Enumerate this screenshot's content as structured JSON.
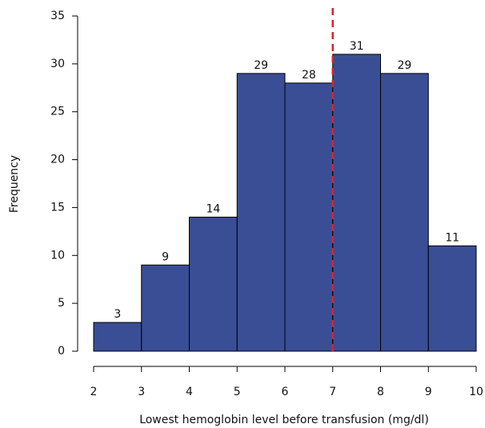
{
  "chart_data": {
    "type": "histogram",
    "xlabel": "Lowest hemoglobin level before transfusion (mg/dl)",
    "ylabel": "Frequency",
    "bins": [
      2,
      3,
      4,
      5,
      6,
      7,
      8,
      9,
      10
    ],
    "values": [
      3,
      9,
      14,
      29,
      28,
      31,
      29,
      11
    ],
    "color": "#3a4e96",
    "xlim": [
      2,
      10
    ],
    "xticks": [
      2,
      3,
      4,
      5,
      6,
      7,
      8,
      9,
      10
    ],
    "ylim": [
      0,
      35
    ],
    "yticks": [
      0,
      5,
      10,
      15,
      20,
      25,
      30,
      35
    ],
    "vline": 7,
    "vline_color": "#e0202a"
  }
}
